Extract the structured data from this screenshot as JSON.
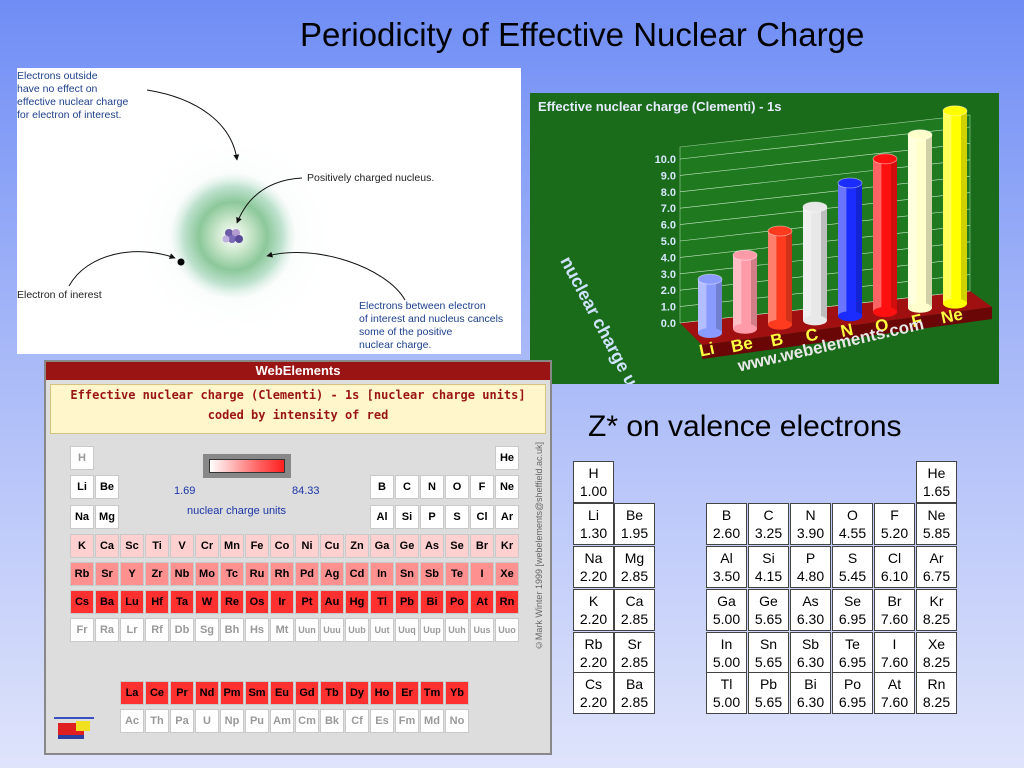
{
  "slide": {
    "title": "Periodicity of Effective Nuclear Charge",
    "valence_title": "Z* on valence electrons"
  },
  "diagram": {
    "outside_lines": [
      "Electrons outside",
      "have no effect on",
      "effective nuclear charge",
      "for electron of interest."
    ],
    "nucleus_label": "Positively charged nucleus.",
    "electron_label": "Electron of inerest",
    "between_lines": [
      "Electrons between electron",
      "of interest and nucleus cancels",
      "some of the positive",
      "nuclear charge."
    ]
  },
  "chart": {
    "title": "Effective nuclear charge (Clementi) - 1s",
    "ylabel": "nuclear charge units",
    "watermark": "www.webelements.com",
    "chart_data": {
      "type": "bar",
      "title": "Effective nuclear charge (Clementi) - 1s",
      "ylabel": "nuclear charge units",
      "ylim": [
        0,
        10
      ],
      "yticks": [
        "0.0",
        "1.0",
        "2.0",
        "3.0",
        "4.0",
        "5.0",
        "6.0",
        "7.0",
        "8.0",
        "9.0",
        "10.0"
      ],
      "categories": [
        "Li",
        "Be",
        "B",
        "C",
        "N",
        "O",
        "F",
        "Ne"
      ],
      "values": [
        2.69,
        3.68,
        4.68,
        5.67,
        6.66,
        7.66,
        8.65,
        9.64
      ],
      "colors": [
        "#8a9bff",
        "#ff9aa8",
        "#ff3b1f",
        "#e8e8e8",
        "#1a2cff",
        "#ff1010",
        "#ffffcc",
        "#ffff00"
      ]
    }
  },
  "webelements": {
    "header": "WebElements",
    "banner_line1": "Effective nuclear charge (Clementi) - 1s [nuclear charge units]",
    "banner_line2": "coded by intensity of red",
    "legend_min": "1.69",
    "legend_max": "84.33",
    "legend_label": "nuclear charge units",
    "credit": "©Mark Winter 1999 [webelements@sheffield.ac.uk]",
    "rows": [
      [
        [
          "H",
          1,
          "#ffffff",
          "#999999"
        ],
        [
          "He",
          18,
          "#ffffff",
          "#000000"
        ]
      ],
      [
        [
          "Li",
          1,
          "#ffffff",
          "#000000"
        ],
        [
          "Be",
          2,
          "#ffffff",
          "#000000"
        ],
        [
          "B",
          13,
          "#ffffff",
          "#000000"
        ],
        [
          "C",
          14,
          "#ffffff",
          "#000000"
        ],
        [
          "N",
          15,
          "#ffffff",
          "#000000"
        ],
        [
          "O",
          16,
          "#ffffff",
          "#000000"
        ],
        [
          "F",
          17,
          "#ffffff",
          "#000000"
        ],
        [
          "Ne",
          18,
          "#ffffff",
          "#000000"
        ]
      ],
      [
        [
          "Na",
          1,
          "#ffffff",
          "#000000"
        ],
        [
          "Mg",
          2,
          "#ffffff",
          "#000000"
        ],
        [
          "Al",
          13,
          "#ffffff",
          "#000000"
        ],
        [
          "Si",
          14,
          "#ffffff",
          "#000000"
        ],
        [
          "P",
          15,
          "#ffffff",
          "#000000"
        ],
        [
          "S",
          16,
          "#ffffff",
          "#000000"
        ],
        [
          "Cl",
          17,
          "#ffffff",
          "#000000"
        ],
        [
          "Ar",
          18,
          "#ffffff",
          "#000000"
        ]
      ],
      [
        [
          "K",
          1,
          "#ffd0d0",
          "#000000"
        ],
        [
          "Ca",
          2,
          "#ffd0d0",
          "#000000"
        ],
        [
          "Sc",
          3,
          "#ffd0d0",
          "#000000"
        ],
        [
          "Ti",
          4,
          "#ffd0d0",
          "#000000"
        ],
        [
          "V",
          5,
          "#ffd0d0",
          "#000000"
        ],
        [
          "Cr",
          6,
          "#ffd0d0",
          "#000000"
        ],
        [
          "Mn",
          7,
          "#ffd0d0",
          "#000000"
        ],
        [
          "Fe",
          8,
          "#ffd0d0",
          "#000000"
        ],
        [
          "Co",
          9,
          "#ffd0d0",
          "#000000"
        ],
        [
          "Ni",
          10,
          "#ffd0d0",
          "#000000"
        ],
        [
          "Cu",
          11,
          "#ffd0d0",
          "#000000"
        ],
        [
          "Zn",
          12,
          "#ffd0d0",
          "#000000"
        ],
        [
          "Ga",
          13,
          "#ffd0d0",
          "#000000"
        ],
        [
          "Ge",
          14,
          "#ffd0d0",
          "#000000"
        ],
        [
          "As",
          15,
          "#ffd0d0",
          "#000000"
        ],
        [
          "Se",
          16,
          "#ffd0d0",
          "#000000"
        ],
        [
          "Br",
          17,
          "#ffd0d0",
          "#000000"
        ],
        [
          "Kr",
          18,
          "#ffd0d0",
          "#000000"
        ]
      ],
      [
        [
          "Rb",
          1,
          "#ff9090",
          "#000000"
        ],
        [
          "Sr",
          2,
          "#ff9090",
          "#000000"
        ],
        [
          "Y",
          3,
          "#ff9090",
          "#000000"
        ],
        [
          "Zr",
          4,
          "#ff9090",
          "#000000"
        ],
        [
          "Nb",
          5,
          "#ff9090",
          "#000000"
        ],
        [
          "Mo",
          6,
          "#ff9090",
          "#000000"
        ],
        [
          "Tc",
          7,
          "#ff9090",
          "#000000"
        ],
        [
          "Ru",
          8,
          "#ff9090",
          "#000000"
        ],
        [
          "Rh",
          9,
          "#ff9090",
          "#000000"
        ],
        [
          "Pd",
          10,
          "#ff9090",
          "#000000"
        ],
        [
          "Ag",
          11,
          "#ff9090",
          "#000000"
        ],
        [
          "Cd",
          12,
          "#ff9090",
          "#000000"
        ],
        [
          "In",
          13,
          "#ff9090",
          "#000000"
        ],
        [
          "Sn",
          14,
          "#ff9090",
          "#000000"
        ],
        [
          "Sb",
          15,
          "#ff9090",
          "#000000"
        ],
        [
          "Te",
          16,
          "#ff9090",
          "#000000"
        ],
        [
          "I",
          17,
          "#ff9090",
          "#000000"
        ],
        [
          "Xe",
          18,
          "#ff9090",
          "#000000"
        ]
      ],
      [
        [
          "Cs",
          1,
          "#ff3030",
          "#000000"
        ],
        [
          "Ba",
          2,
          "#ff3030",
          "#000000"
        ],
        [
          "Lu",
          3,
          "#ff3030",
          "#000000"
        ],
        [
          "Hf",
          4,
          "#ff3030",
          "#000000"
        ],
        [
          "Ta",
          5,
          "#ff3030",
          "#000000"
        ],
        [
          "W",
          6,
          "#ff3030",
          "#000000"
        ],
        [
          "Re",
          7,
          "#ff3030",
          "#000000"
        ],
        [
          "Os",
          8,
          "#ff3030",
          "#000000"
        ],
        [
          "Ir",
          9,
          "#ff3030",
          "#000000"
        ],
        [
          "Pt",
          10,
          "#ff3030",
          "#000000"
        ],
        [
          "Au",
          11,
          "#ff3030",
          "#000000"
        ],
        [
          "Hg",
          12,
          "#ff3030",
          "#000000"
        ],
        [
          "Tl",
          13,
          "#ff3030",
          "#000000"
        ],
        [
          "Pb",
          14,
          "#ff3030",
          "#000000"
        ],
        [
          "Bi",
          15,
          "#ff3030",
          "#000000"
        ],
        [
          "Po",
          16,
          "#ff3030",
          "#000000"
        ],
        [
          "At",
          17,
          "#ff3030",
          "#000000"
        ],
        [
          "Rn",
          18,
          "#ff3030",
          "#000000"
        ]
      ],
      [
        [
          "Fr",
          1,
          "#ffffff",
          "#999999"
        ],
        [
          "Ra",
          2,
          "#ffffff",
          "#999999"
        ],
        [
          "Lr",
          3,
          "#ffffff",
          "#999999"
        ],
        [
          "Rf",
          4,
          "#ffffff",
          "#999999"
        ],
        [
          "Db",
          5,
          "#ffffff",
          "#999999"
        ],
        [
          "Sg",
          6,
          "#ffffff",
          "#999999"
        ],
        [
          "Bh",
          7,
          "#ffffff",
          "#999999"
        ],
        [
          "Hs",
          8,
          "#ffffff",
          "#999999"
        ],
        [
          "Mt",
          9,
          "#ffffff",
          "#999999"
        ],
        [
          "Uun",
          10,
          "#ffffff",
          "#999999"
        ],
        [
          "Uuu",
          11,
          "#ffffff",
          "#999999"
        ],
        [
          "Uub",
          12,
          "#ffffff",
          "#999999"
        ],
        [
          "Uut",
          13,
          "#ffffff",
          "#999999"
        ],
        [
          "Uuq",
          14,
          "#ffffff",
          "#999999"
        ],
        [
          "Uup",
          15,
          "#ffffff",
          "#999999"
        ],
        [
          "Uuh",
          16,
          "#ffffff",
          "#999999"
        ],
        [
          "Uus",
          17,
          "#ffffff",
          "#999999"
        ],
        [
          "Uuo",
          18,
          "#ffffff",
          "#999999"
        ]
      ]
    ],
    "lanthanides": [
      "La",
      "Ce",
      "Pr",
      "Nd",
      "Pm",
      "Sm",
      "Eu",
      "Gd",
      "Tb",
      "Dy",
      "Ho",
      "Er",
      "Tm",
      "Yb"
    ],
    "lanthanide_color": "#ff3030",
    "actinides": [
      "Ac",
      "Th",
      "Pa",
      "U",
      "Np",
      "Pu",
      "Am",
      "Cm",
      "Bk",
      "Cf",
      "Es",
      "Fm",
      "Md",
      "No"
    ]
  },
  "valence_table": {
    "rows": [
      [
        [
          "H",
          "1.00",
          1
        ],
        [
          "He",
          "1.65",
          9
        ]
      ],
      [
        [
          "Li",
          "1.30",
          1
        ],
        [
          "Be",
          "1.95",
          2
        ],
        [
          "B",
          "2.60",
          4
        ],
        [
          "C",
          "3.25",
          5
        ],
        [
          "N",
          "3.90",
          6
        ],
        [
          "O",
          "4.55",
          7
        ],
        [
          "F",
          "5.20",
          8
        ],
        [
          "Ne",
          "5.85",
          9
        ]
      ],
      [
        [
          "Na",
          "2.20",
          1
        ],
        [
          "Mg",
          "2.85",
          2
        ],
        [
          "Al",
          "3.50",
          4
        ],
        [
          "Si",
          "4.15",
          5
        ],
        [
          "P",
          "4.80",
          6
        ],
        [
          "S",
          "5.45",
          7
        ],
        [
          "Cl",
          "6.10",
          8
        ],
        [
          "Ar",
          "6.75",
          9
        ]
      ],
      [
        [
          "K",
          "2.20",
          1
        ],
        [
          "Ca",
          "2.85",
          2
        ],
        [
          "Ga",
          "5.00",
          4
        ],
        [
          "Ge",
          "5.65",
          5
        ],
        [
          "As",
          "6.30",
          6
        ],
        [
          "Se",
          "6.95",
          7
        ],
        [
          "Br",
          "7.60",
          8
        ],
        [
          "Kr",
          "8.25",
          9
        ]
      ],
      [
        [
          "Rb",
          "2.20",
          1
        ],
        [
          "Sr",
          "2.85",
          2
        ],
        [
          "In",
          "5.00",
          4
        ],
        [
          "Sn",
          "5.65",
          5
        ],
        [
          "Sb",
          "6.30",
          6
        ],
        [
          "Te",
          "6.95",
          7
        ],
        [
          "I",
          "7.60",
          8
        ],
        [
          "Xe",
          "8.25",
          9
        ]
      ],
      [
        [
          "Cs",
          "2.20",
          1
        ],
        [
          "Ba",
          "2.85",
          2
        ],
        [
          "Tl",
          "5.00",
          4
        ],
        [
          "Pb",
          "5.65",
          5
        ],
        [
          "Bi",
          "6.30",
          6
        ],
        [
          "Po",
          "6.95",
          7
        ],
        [
          "At",
          "7.60",
          8
        ],
        [
          "Rn",
          "8.25",
          9
        ]
      ]
    ]
  }
}
